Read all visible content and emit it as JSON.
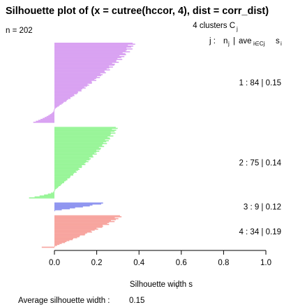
{
  "chart_data": {
    "type": "bar",
    "orientation": "horizontal",
    "title": "Silhouette plot of (x = cutree(hccor, 4), dist = corr_dist)",
    "n_label": "n = 202",
    "clusters_header": "4  clusters  C",
    "clusters_header_sub": "j",
    "legend_header": {
      "j": "j :",
      "n": "n",
      "n_sub": "j",
      "sep": "|",
      "ave": "ave",
      "ave_sub": "i∈Cj",
      "s": "s",
      "s_sub": "i"
    },
    "xlabel": "Silhouette width s",
    "xlabel_sub": "i",
    "xlim": [
      0.0,
      1.0
    ],
    "xticks": [
      "0.0",
      "0.2",
      "0.4",
      "0.6",
      "0.8",
      "1.0"
    ],
    "footer_label": "Average silhouette width :",
    "footer_value": "0.15",
    "clusters": [
      {
        "j": 1,
        "label": "1 :   84  |  0.15",
        "n": 84,
        "ave": 0.15,
        "max": 0.37,
        "min": -0.1,
        "neg_count": 14,
        "color": "#d9a2f2"
      },
      {
        "j": 2,
        "label": "2 :   75  |  0.14",
        "n": 75,
        "ave": 0.14,
        "max": 0.29,
        "min": -0.12,
        "neg_count": 8,
        "color": "#99f599"
      },
      {
        "j": 3,
        "label": "3 :   9  |  0.12",
        "n": 9,
        "ave": 0.12,
        "max": 0.23,
        "min": 0.0,
        "neg_count": 0,
        "color": "#8f95f0"
      },
      {
        "j": 4,
        "label": "4 :   34  |  0.19",
        "n": 34,
        "ave": 0.19,
        "max": 0.31,
        "min": -0.06,
        "neg_count": 1,
        "color": "#f7a59f"
      }
    ]
  }
}
